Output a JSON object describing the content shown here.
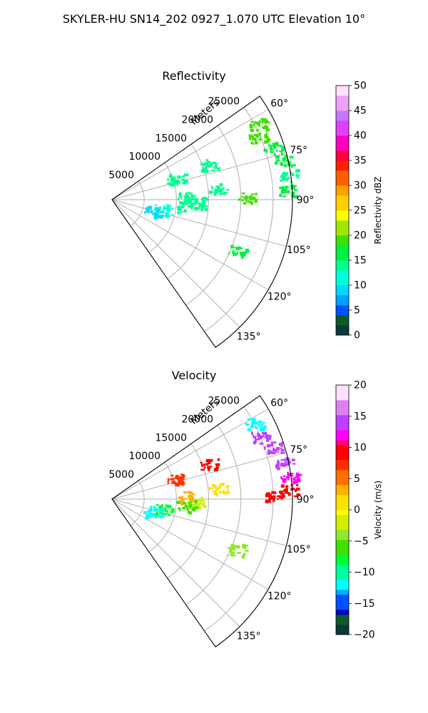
{
  "figure": {
    "suptitle": "SKYLER-HU  SN14_202  0927_1.070 UTC Elevation 10°"
  },
  "chart_data": [
    {
      "type": "polar-ppi",
      "title": "Reflectivity",
      "range_axis_label": "Meters",
      "range_ticks": [
        "5000",
        "10000",
        "15000",
        "20000",
        "25000"
      ],
      "range_values": [
        5000,
        10000,
        15000,
        20000,
        25000
      ],
      "range_max_m": 28000,
      "azimuth_range_deg": [
        55,
        145
      ],
      "azimuth_ticks": [
        "60°",
        "75°",
        "90°",
        "105°",
        "120°",
        "135°"
      ],
      "azimuth_values": [
        60,
        75,
        90,
        105,
        120,
        135
      ],
      "grid": true,
      "colorbar": {
        "label": "Reflectivity dBZ",
        "min": 0,
        "max": 50,
        "ticks": [
          "0",
          "5",
          "10",
          "15",
          "20",
          "25",
          "30",
          "35",
          "40",
          "45",
          "50"
        ],
        "tick_values": [
          0,
          5,
          10,
          15,
          20,
          25,
          30,
          35,
          40,
          45,
          50
        ]
      },
      "echoes": [
        {
          "az": 62.5,
          "r_m": 25500,
          "value": 18
        },
        {
          "az": 67,
          "r_m": 24500,
          "value": 20
        },
        {
          "az": 72,
          "r_m": 26200,
          "value": 16
        },
        {
          "az": 77,
          "r_m": 27300,
          "value": 17
        },
        {
          "az": 82,
          "r_m": 27700,
          "value": 15
        },
        {
          "az": 87,
          "r_m": 27300,
          "value": 16
        },
        {
          "az": 70,
          "r_m": 16000,
          "value": 14
        },
        {
          "az": 72,
          "r_m": 10500,
          "value": 13
        },
        {
          "az": 84,
          "r_m": 16500,
          "value": 15
        },
        {
          "az": 88,
          "r_m": 11500,
          "value": 14
        },
        {
          "az": 92,
          "r_m": 13000,
          "value": 14
        },
        {
          "az": 95,
          "r_m": 11500,
          "value": 13
        },
        {
          "az": 101,
          "r_m": 8000,
          "value": 12
        },
        {
          "az": 106,
          "r_m": 6500,
          "value": 10
        },
        {
          "az": 112,
          "r_m": 20800,
          "value": 17
        },
        {
          "az": 89,
          "r_m": 21000,
          "value": 18
        }
      ]
    },
    {
      "type": "polar-ppi",
      "title": "Velocity",
      "range_axis_label": "Meters",
      "range_ticks": [
        "5000",
        "10000",
        "15000",
        "20000",
        "25000"
      ],
      "range_values": [
        5000,
        10000,
        15000,
        20000,
        25000
      ],
      "range_max_m": 28000,
      "azimuth_range_deg": [
        55,
        145
      ],
      "azimuth_ticks": [
        "60°",
        "75°",
        "90°",
        "105°",
        "120°",
        "135°"
      ],
      "azimuth_values": [
        60,
        75,
        90,
        105,
        120,
        135
      ],
      "grid": true,
      "colorbar": {
        "label": "Velocity (m/s)",
        "min": -20,
        "max": 20,
        "ticks": [
          "−20",
          "−15",
          "−10",
          "−5",
          "0",
          "5",
          "10",
          "15",
          "20"
        ],
        "tick_values": [
          -20,
          -15,
          -10,
          -5,
          0,
          5,
          10,
          15,
          20
        ]
      },
      "echoes": [
        {
          "az": 62,
          "r_m": 25000,
          "value": -12
        },
        {
          "az": 67,
          "r_m": 24800,
          "value": 14
        },
        {
          "az": 72,
          "r_m": 26200,
          "value": 15
        },
        {
          "az": 78,
          "r_m": 27300,
          "value": 14
        },
        {
          "az": 83,
          "r_m": 27700,
          "value": 13
        },
        {
          "az": 87,
          "r_m": 27300,
          "value": 9
        },
        {
          "az": 70,
          "r_m": 16000,
          "value": 10
        },
        {
          "az": 72,
          "r_m": 10500,
          "value": 7
        },
        {
          "az": 84,
          "r_m": 16500,
          "value": 2
        },
        {
          "az": 88,
          "r_m": 11500,
          "value": 3
        },
        {
          "az": 92,
          "r_m": 13000,
          "value": -2
        },
        {
          "az": 95,
          "r_m": 11500,
          "value": -5
        },
        {
          "az": 101,
          "r_m": 8000,
          "value": -7
        },
        {
          "az": 106,
          "r_m": 6500,
          "value": -11
        },
        {
          "az": 112,
          "r_m": 20800,
          "value": -4
        },
        {
          "az": 89,
          "r_m": 25000,
          "value": 10
        }
      ]
    }
  ]
}
